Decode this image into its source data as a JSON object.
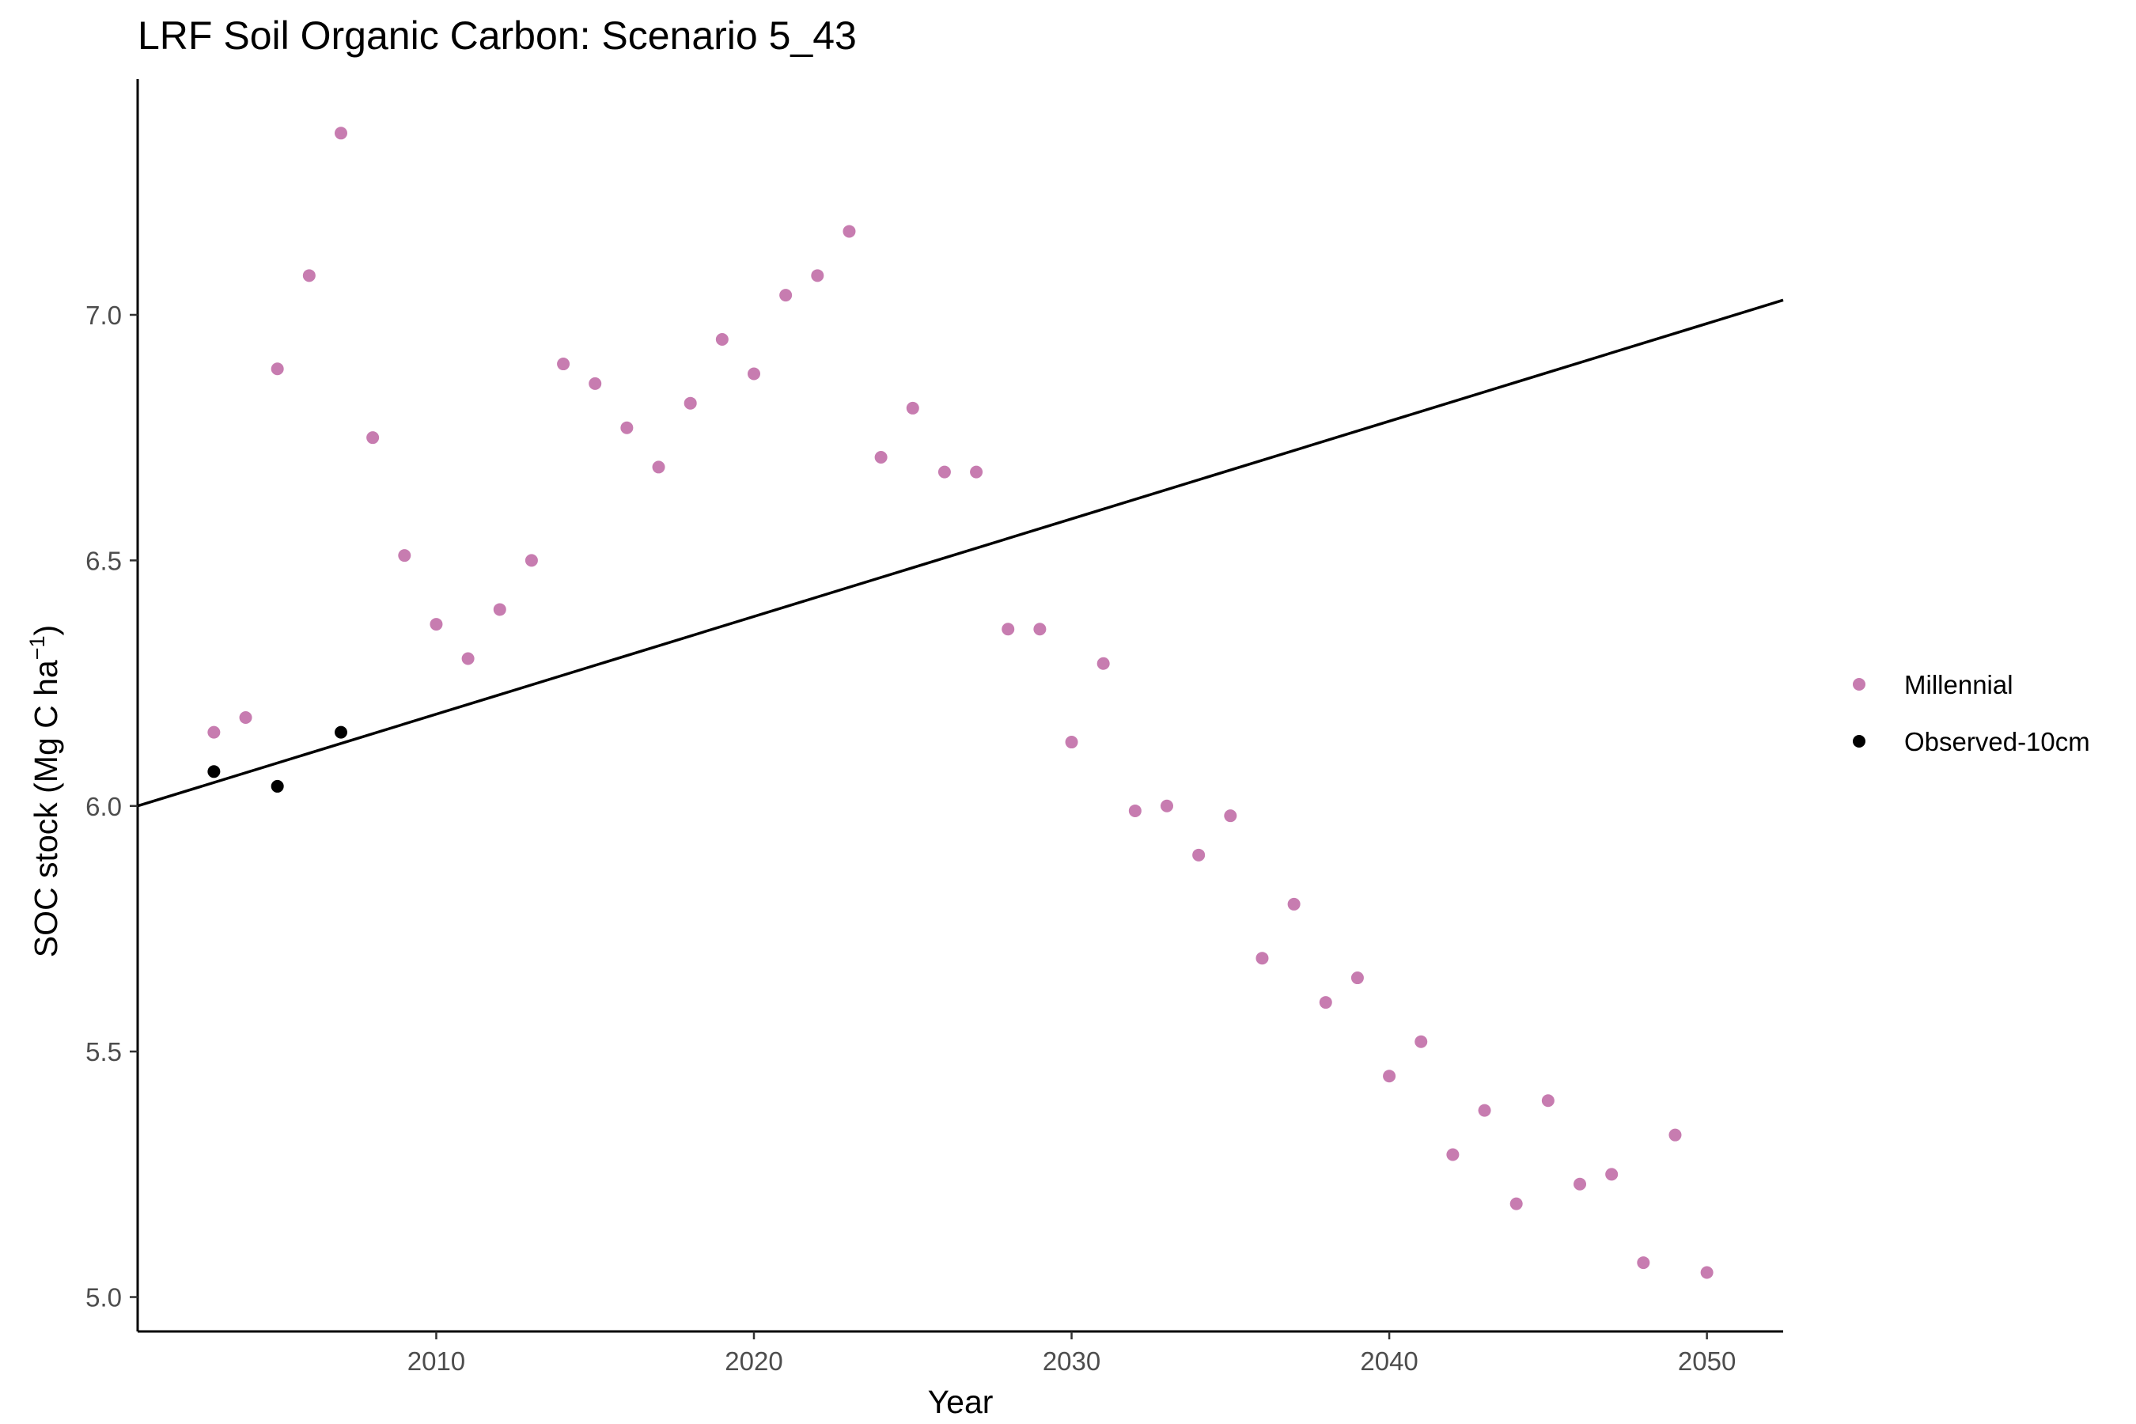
{
  "chart_data": {
    "type": "scatter",
    "title": "LRF Soil Organic Carbon: Scenario  5_43",
    "xlabel": "Year",
    "ylabel_main": "SOC stock (Mg C ha",
    "ylabel_sup": "−1",
    "ylabel_close": ")",
    "xlim": [
      2000.6,
      2052.4
    ],
    "ylim": [
      4.93,
      7.48
    ],
    "x_ticks": [
      2010,
      2020,
      2030,
      2040,
      2050
    ],
    "y_ticks": [
      5.0,
      5.5,
      6.0,
      6.5,
      7.0
    ],
    "y_tick_labels": [
      "5.0",
      "5.5",
      "6.0",
      "6.5",
      "7.0"
    ],
    "grid": false,
    "legend_position": "right",
    "series": [
      {
        "name": "Millennial",
        "color": "#c77cb0",
        "marker": "circle",
        "points": [
          [
            2003,
            6.15
          ],
          [
            2004,
            6.18
          ],
          [
            2005,
            6.89
          ],
          [
            2006,
            7.08
          ],
          [
            2007,
            7.37
          ],
          [
            2008,
            6.75
          ],
          [
            2009,
            6.51
          ],
          [
            2010,
            6.37
          ],
          [
            2011,
            6.3
          ],
          [
            2012,
            6.4
          ],
          [
            2013,
            6.5
          ],
          [
            2014,
            6.9
          ],
          [
            2015,
            6.86
          ],
          [
            2016,
            6.77
          ],
          [
            2017,
            6.69
          ],
          [
            2018,
            6.82
          ],
          [
            2019,
            6.95
          ],
          [
            2020,
            6.88
          ],
          [
            2021,
            7.04
          ],
          [
            2022,
            7.08
          ],
          [
            2023,
            7.17
          ],
          [
            2024,
            6.71
          ],
          [
            2025,
            6.81
          ],
          [
            2026,
            6.68
          ],
          [
            2027,
            6.68
          ],
          [
            2028,
            6.36
          ],
          [
            2029,
            6.36
          ],
          [
            2030,
            6.13
          ],
          [
            2031,
            6.29
          ],
          [
            2032,
            5.99
          ],
          [
            2033,
            6.0
          ],
          [
            2034,
            5.9
          ],
          [
            2035,
            5.98
          ],
          [
            2036,
            5.69
          ],
          [
            2037,
            5.8
          ],
          [
            2038,
            5.6
          ],
          [
            2039,
            5.65
          ],
          [
            2040,
            5.45
          ],
          [
            2041,
            5.52
          ],
          [
            2042,
            5.29
          ],
          [
            2043,
            5.38
          ],
          [
            2044,
            5.19
          ],
          [
            2045,
            5.4
          ],
          [
            2046,
            5.23
          ],
          [
            2047,
            5.25
          ],
          [
            2048,
            5.07
          ],
          [
            2049,
            5.33
          ],
          [
            2050,
            5.05
          ]
        ]
      },
      {
        "name": "Observed-10cm",
        "color": "#000000",
        "marker": "circle",
        "points": [
          [
            2003,
            6.07
          ],
          [
            2005,
            6.04
          ],
          [
            2007,
            6.15
          ]
        ]
      }
    ],
    "trend_line": {
      "color": "#000000",
      "start": [
        2000.6,
        6.0
      ],
      "end": [
        2052.4,
        7.03
      ]
    }
  }
}
